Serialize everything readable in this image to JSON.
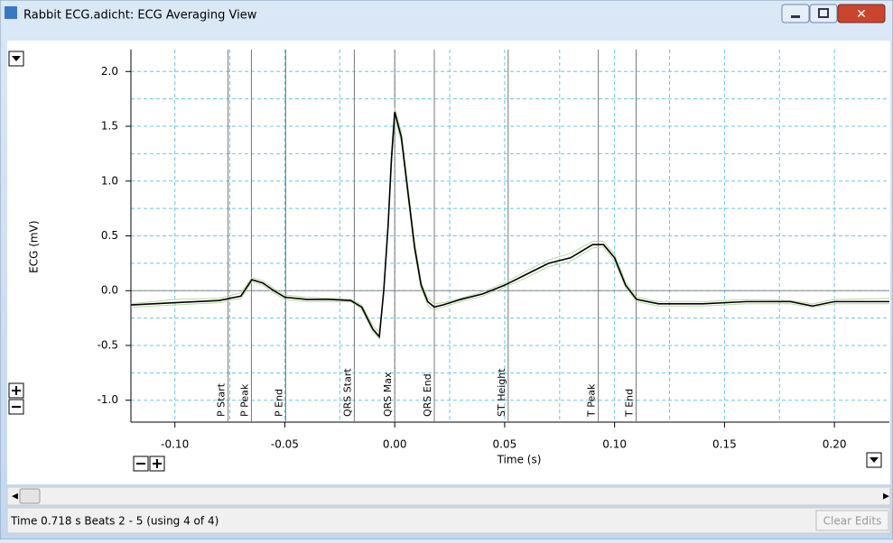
{
  "window": {
    "title": "Rabbit ECG.adicht: ECG Averaging View"
  },
  "status": {
    "text": "Time 0.718 s  Beats 2 - 5 (using 4 of 4)",
    "button": "Clear Edits"
  },
  "chart_data": {
    "type": "line",
    "xlabel": "Time (s)",
    "ylabel": "ECG (mV)",
    "xlim": [
      -0.12,
      0.225
    ],
    "ylim": [
      -1.2,
      2.2
    ],
    "xticks": [
      {
        "value": -0.1,
        "label": "-0.10"
      },
      -0.05,
      {
        "value": 0,
        "label": "0.00"
      },
      0.05,
      {
        "value": 0.1,
        "label": "0.10"
      },
      0.15,
      {
        "value": 0.2,
        "label": "0.20"
      }
    ],
    "yticks": [
      {
        "value": -1,
        "label": "-1.0"
      },
      {
        "value": -0.5,
        "label": "-0.5"
      },
      {
        "value": 0,
        "label": "0.0"
      },
      {
        "value": 0.5,
        "label": "0.5"
      },
      {
        "value": 1,
        "label": "1.0"
      },
      {
        "value": 1.5,
        "label": "1.5"
      },
      {
        "value": 2,
        "label": "2.0"
      }
    ],
    "xgrid": [
      -0.1,
      -0.075,
      -0.05,
      -0.025,
      0,
      0.025,
      0.05,
      0.075,
      0.1,
      0.125,
      0.15,
      0.175,
      0.2
    ],
    "ygrid": [
      -1,
      -0.75,
      -0.5,
      -0.25,
      0,
      0.25,
      0.5,
      0.75,
      1,
      1.25,
      1.5,
      1.75,
      2
    ],
    "grid": true,
    "x": [
      -0.12,
      -0.1,
      -0.08,
      -0.07,
      -0.065,
      -0.06,
      -0.055,
      -0.05,
      -0.04,
      -0.03,
      -0.02,
      -0.015,
      -0.01,
      -0.007,
      -0.005,
      -0.003,
      -0.0015,
      0,
      0.003,
      0.006,
      0.009,
      0.012,
      0.015,
      0.018,
      0.022,
      0.03,
      0.04,
      0.05,
      0.06,
      0.07,
      0.08,
      0.09,
      0.095,
      0.1,
      0.105,
      0.11,
      0.12,
      0.14,
      0.16,
      0.18,
      0.19,
      0.2,
      0.225
    ],
    "series": [
      {
        "color": "#b5d99c",
        "values": [
          -0.12,
          -0.08,
          -0.07,
          -0.02,
          0.12,
          0.09,
          0.02,
          -0.04,
          -0.06,
          -0.07,
          -0.08,
          -0.13,
          -0.32,
          -0.38,
          -0.02,
          0.62,
          1.25,
          1.67,
          1.45,
          0.95,
          0.45,
          0.08,
          -0.07,
          -0.12,
          -0.11,
          -0.07,
          -0.01,
          0.07,
          0.18,
          0.28,
          0.34,
          0.45,
          0.45,
          0.33,
          0.08,
          -0.06,
          -0.1,
          -0.1,
          -0.08,
          -0.09,
          -0.12,
          -0.08,
          -0.07
        ]
      },
      {
        "color": "#b5d99c",
        "values": [
          -0.15,
          -0.13,
          -0.11,
          -0.07,
          0.08,
          0.05,
          -0.02,
          -0.08,
          -0.1,
          -0.1,
          -0.1,
          -0.17,
          -0.37,
          -0.44,
          0.01,
          0.58,
          1.15,
          1.58,
          1.36,
          0.86,
          0.36,
          0.02,
          -0.13,
          -0.18,
          -0.15,
          -0.1,
          -0.05,
          0.03,
          0.12,
          0.22,
          0.27,
          0.39,
          0.4,
          0.27,
          0.03,
          -0.1,
          -0.14,
          -0.14,
          -0.12,
          -0.12,
          -0.15,
          -0.12,
          -0.12
        ]
      },
      {
        "color": "#000000",
        "values": [
          -0.13,
          -0.11,
          -0.09,
          -0.05,
          0.1,
          0.07,
          0,
          -0.06,
          -0.08,
          -0.08,
          -0.09,
          -0.15,
          -0.35,
          -0.42,
          0,
          0.6,
          1.2,
          1.63,
          1.4,
          0.9,
          0.4,
          0.05,
          -0.1,
          -0.15,
          -0.13,
          -0.08,
          -0.03,
          0.05,
          0.15,
          0.25,
          0.3,
          0.42,
          0.42,
          0.3,
          0.05,
          -0.08,
          -0.12,
          -0.12,
          -0.1,
          -0.1,
          -0.14,
          -0.1,
          -0.1
        ]
      }
    ],
    "markers": [
      {
        "label": "P Start",
        "x": -0.0758
      },
      {
        "label": "P Peak",
        "x": -0.0652
      },
      {
        "label": "P End",
        "x": -0.0496
      },
      {
        "label": "QRS Start",
        "x": -0.0184
      },
      {
        "label": "QRS Max",
        "x": 0
      },
      {
        "label": "QRS End",
        "x": 0.018
      },
      {
        "label": "ST Height",
        "x": 0.0516
      },
      {
        "label": "T Peak",
        "x": 0.0926
      },
      {
        "label": "T End",
        "x": 0.1098
      }
    ]
  }
}
